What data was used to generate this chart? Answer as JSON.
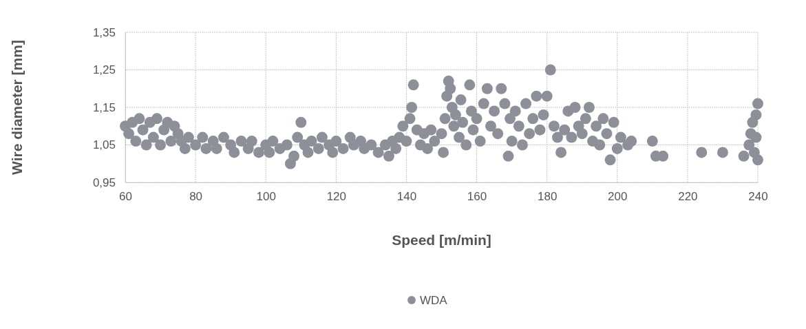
{
  "chart_data": {
    "type": "scatter",
    "xlabel": "Speed [m/min]",
    "ylabel": "Wire diameter [mm]",
    "xlim": [
      60,
      240
    ],
    "xticks": [
      60,
      80,
      100,
      120,
      140,
      160,
      180,
      200,
      220,
      240
    ],
    "ylim": [
      0.95,
      1.35
    ],
    "yticks": [
      {
        "value": 0.95,
        "label": "0,95"
      },
      {
        "value": 1.05,
        "label": "1,05"
      },
      {
        "value": 1.15,
        "label": "1,15"
      },
      {
        "value": 1.25,
        "label": "1,25"
      },
      {
        "value": 1.35,
        "label": "1,35"
      }
    ],
    "grid": true,
    "legend": "bottom",
    "marker": "circle",
    "series": [
      {
        "name": "WDA",
        "color": "#8e9099",
        "x": [
          60,
          61,
          62,
          63,
          64,
          65,
          66,
          67,
          68,
          69,
          70,
          71,
          72,
          73,
          74,
          75,
          76,
          77,
          78,
          80,
          82,
          83,
          85,
          86,
          88,
          90,
          91,
          93,
          95,
          96,
          98,
          100,
          101,
          102,
          104,
          106,
          107,
          108,
          109,
          110,
          111,
          112,
          113,
          115,
          116,
          118,
          119,
          120,
          122,
          124,
          125,
          127,
          128,
          130,
          132,
          134,
          135,
          136,
          137,
          138,
          139,
          140,
          141,
          141.5,
          142,
          143,
          144,
          145,
          146,
          147,
          148,
          150,
          150.5,
          151,
          151.5,
          152,
          152.5,
          153,
          153.5,
          154,
          155,
          155.5,
          156,
          157,
          158,
          158.5,
          159,
          160,
          161,
          162,
          163,
          164,
          165,
          166,
          167,
          168,
          169,
          169.5,
          170,
          171,
          172,
          173,
          174,
          175,
          176,
          177,
          178,
          179,
          180,
          181,
          182,
          183,
          184,
          185,
          186,
          187,
          188,
          189,
          190,
          191,
          192,
          193,
          194,
          195,
          196,
          197,
          198,
          199,
          200,
          201,
          203,
          204,
          210,
          211,
          213,
          224,
          230,
          236,
          237.5,
          238,
          238.5,
          239,
          239.5,
          240,
          240,
          239.5
        ],
        "values": [
          1.1,
          1.08,
          1.11,
          1.06,
          1.12,
          1.09,
          1.05,
          1.11,
          1.07,
          1.12,
          1.05,
          1.09,
          1.11,
          1.06,
          1.1,
          1.08,
          1.06,
          1.04,
          1.07,
          1.05,
          1.07,
          1.04,
          1.06,
          1.04,
          1.07,
          1.05,
          1.03,
          1.06,
          1.04,
          1.06,
          1.03,
          1.05,
          1.03,
          1.06,
          1.04,
          1.05,
          1.0,
          1.02,
          1.07,
          1.11,
          1.05,
          1.03,
          1.06,
          1.04,
          1.07,
          1.05,
          1.03,
          1.06,
          1.04,
          1.07,
          1.05,
          1.06,
          1.04,
          1.05,
          1.03,
          1.05,
          1.02,
          1.06,
          1.04,
          1.07,
          1.1,
          1.06,
          1.12,
          1.15,
          1.21,
          1.09,
          1.05,
          1.08,
          1.04,
          1.09,
          1.06,
          1.08,
          1.03,
          1.12,
          1.18,
          1.22,
          1.2,
          1.15,
          1.1,
          1.13,
          1.07,
          1.17,
          1.11,
          1.05,
          1.21,
          1.14,
          1.09,
          1.12,
          1.06,
          1.16,
          1.2,
          1.1,
          1.14,
          1.08,
          1.2,
          1.16,
          1.02,
          1.12,
          1.06,
          1.14,
          1.1,
          1.05,
          1.16,
          1.08,
          1.12,
          1.18,
          1.09,
          1.13,
          1.18,
          1.25,
          1.1,
          1.07,
          1.03,
          1.09,
          1.14,
          1.07,
          1.15,
          1.1,
          1.08,
          1.12,
          1.15,
          1.06,
          1.1,
          1.05,
          1.12,
          1.08,
          1.01,
          1.11,
          1.04,
          1.07,
          1.05,
          1.06,
          1.06,
          1.02,
          1.02,
          1.03,
          1.03,
          1.02,
          1.05,
          1.08,
          1.11,
          1.03,
          1.13,
          1.16,
          1.01,
          1.07
        ]
      }
    ]
  }
}
